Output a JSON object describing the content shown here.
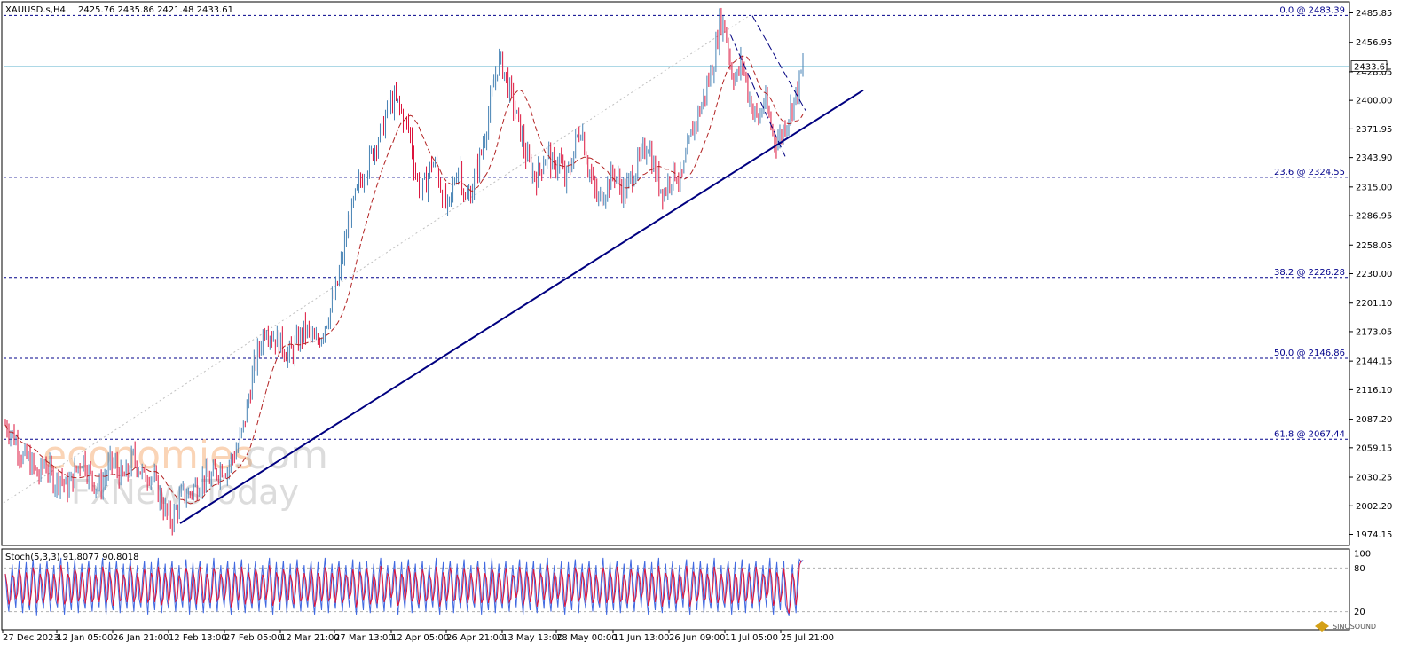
{
  "header": {
    "symbol": "XAUUSD.s,H4",
    "ohlc": "2425.76 2435.86 2421.48 2433.61"
  },
  "stoch": {
    "label": "Stoch(5,3,3) 91.8077 90.8018",
    "levels": [
      20,
      80,
      100
    ],
    "values": [
      72,
      40,
      20,
      55,
      85,
      50,
      25,
      65,
      90,
      45,
      18,
      60,
      88,
      35,
      22,
      70,
      92,
      48,
      15,
      58,
      86,
      40,
      24,
      68,
      90,
      52,
      20,
      60,
      84,
      36,
      26,
      74,
      94,
      44,
      16,
      56,
      88,
      42,
      22,
      66,
      92,
      50,
      18,
      62,
      86,
      38,
      24,
      72,
      90,
      46,
      20,
      58,
      84,
      40,
      26,
      70,
      94,
      48,
      16,
      60,
      88,
      34,
      22,
      68,
      90,
      52,
      18,
      56,
      86,
      42,
      24,
      74,
      92,
      46,
      20,
      62,
      84,
      38,
      26,
      66,
      90,
      50,
      16,
      58,
      88,
      44,
      22,
      70,
      94,
      40,
      18,
      60,
      86,
      36,
      24,
      72,
      90,
      48,
      20,
      56,
      84,
      42,
      26,
      68,
      92,
      52,
      16,
      62,
      88,
      38,
      22,
      74,
      90,
      46,
      18,
      58,
      86,
      40,
      24,
      66,
      94,
      50,
      20,
      60,
      84,
      44,
      26,
      70,
      90,
      36,
      16,
      56,
      88,
      48,
      22,
      72,
      92,
      42,
      18,
      62,
      86,
      38,
      24,
      68,
      90,
      52,
      20,
      58,
      84,
      46,
      26,
      74,
      94,
      40,
      16,
      60,
      88,
      44,
      22,
      66,
      90,
      50,
      18,
      56,
      86,
      36,
      24,
      70,
      92,
      48,
      20,
      62,
      84,
      42,
      26,
      72,
      90,
      38,
      16,
      58,
      88,
      46,
      22,
      68,
      94,
      52,
      18,
      60,
      86,
      40,
      24,
      74,
      90,
      44,
      20,
      56,
      84,
      50,
      26,
      66,
      92,
      36,
      16,
      62,
      88,
      48,
      22,
      70,
      90,
      42,
      18,
      58,
      86,
      38,
      24,
      72,
      94,
      46,
      20,
      60,
      84,
      52,
      26,
      68,
      90,
      40,
      16,
      56,
      88,
      44,
      22,
      74,
      92,
      50,
      18,
      62,
      86,
      36,
      24,
      66,
      90,
      48,
      20,
      58,
      84,
      42,
      26,
      70,
      94,
      38,
      16,
      60,
      88,
      46,
      22,
      72,
      90,
      52,
      18,
      56,
      86,
      40,
      24,
      68,
      92,
      44,
      20,
      62,
      84,
      36,
      26,
      74,
      90,
      48,
      16,
      58,
      88,
      42,
      22,
      66,
      94,
      50,
      18,
      60,
      86,
      38,
      24,
      70,
      90,
      46,
      20,
      56,
      84,
      52,
      26,
      72,
      92,
      40,
      16,
      62,
      88,
      44,
      22,
      68,
      90,
      36,
      18,
      58,
      86,
      48,
      24,
      74,
      94,
      42,
      20,
      60,
      84,
      50,
      26,
      66,
      90,
      38,
      16,
      56,
      88,
      46,
      22,
      70,
      92,
      52,
      18,
      62,
      86,
      40,
      24,
      72,
      90,
      44,
      20,
      58,
      84,
      36,
      26,
      68,
      94,
      48,
      16,
      60,
      88,
      42,
      22,
      74,
      90,
      50,
      18,
      56,
      86,
      38,
      24,
      66,
      92,
      46,
      20,
      62,
      84,
      52,
      26,
      70,
      90,
      40,
      16,
      58,
      88,
      44,
      22,
      72,
      94,
      36,
      18,
      60,
      86,
      48,
      24,
      68,
      90,
      42,
      20,
      56,
      84,
      50,
      26,
      74,
      92,
      38,
      16,
      62,
      88,
      46,
      22,
      66,
      90,
      52,
      18,
      58,
      86,
      40,
      24,
      70,
      94,
      44,
      20,
      60,
      84,
      36,
      26,
      72,
      90,
      48,
      16,
      56,
      88,
      42,
      22,
      68,
      92,
      50,
      18,
      62,
      86,
      38,
      24,
      74,
      90,
      46,
      20,
      58,
      84,
      52,
      26,
      66,
      94,
      40,
      16,
      60,
      88,
      44,
      22,
      70,
      90,
      30,
      20,
      15,
      60,
      85,
      40,
      18,
      75,
      92,
      88,
      91
    ]
  },
  "chart_data": {
    "type": "candlestick",
    "symbol": "XAUUSD.s",
    "timeframe": "H4",
    "last_price": 2433.61,
    "ylim": [
      1965,
      2495
    ],
    "y_ticks": [
      2485.85,
      2456.95,
      2428.05,
      2400.0,
      2371.95,
      2343.9,
      2315.0,
      2286.95,
      2258.05,
      2230.0,
      2201.1,
      2173.05,
      2144.15,
      2116.1,
      2087.2,
      2059.15,
      2030.25,
      2002.2,
      1974.15
    ],
    "y_tick_labels": [
      "2485.85",
      "2456.95",
      "2428.05",
      "2400.00",
      "2371.95",
      "2343.90",
      "2315.00",
      "2286.95",
      "2258.05",
      "2230.00",
      "2201.10",
      "2173.05",
      "2144.15",
      "2116.10",
      "2087.20",
      "2059.15",
      "2030.25",
      "2002.20",
      "1974.15"
    ],
    "x_labels": [
      "27 Dec 2023",
      "12 Jan 05:00",
      "26 Jan 21:00",
      "12 Feb 13:00",
      "27 Feb 05:00",
      "12 Mar 21:00",
      "27 Mar 13:00",
      "12 Apr 05:00",
      "26 Apr 21:00",
      "13 May 13:00",
      "28 May 00:00",
      "11 Jun 13:00",
      "26 Jun 09:00",
      "11 Jul 05:00",
      "25 Jul 21:00"
    ],
    "fibonacci": [
      {
        "label": "0.0 @ 2483.39",
        "value": 2483.39
      },
      {
        "label": "23.6 @ 2324.55",
        "value": 2324.55
      },
      {
        "label": "38.2 @ 2226.28",
        "value": 2226.28
      },
      {
        "label": "50.0 @ 2146.86",
        "value": 2146.86
      },
      {
        "label": "61.8 @ 2067.44",
        "value": 2067.44
      }
    ],
    "price_path": [
      2082,
      2075,
      2065,
      2050,
      2048,
      2040,
      2030,
      2045,
      2035,
      2025,
      2032,
      2018,
      2028,
      2040,
      2050,
      2035,
      2025,
      2020,
      2030,
      2045,
      2040,
      2028,
      2033,
      2050,
      2042,
      2030,
      2035,
      2025,
      2010,
      1995,
      1988,
      2000,
      2015,
      2012,
      2020,
      2025,
      2030,
      2028,
      2035,
      2040,
      2038,
      2050,
      2060,
      2080,
      2110,
      2140,
      2160,
      2180,
      2170,
      2165,
      2160,
      2150,
      2155,
      2165,
      2175,
      2170,
      2160,
      2170,
      2185,
      2200,
      2220,
      2250,
      2280,
      2300,
      2320,
      2330,
      2345,
      2360,
      2370,
      2390,
      2400,
      2395,
      2380,
      2370,
      2330,
      2310,
      2320,
      2340,
      2330,
      2305,
      2290,
      2320,
      2340,
      2300,
      2310,
      2330,
      2350,
      2380,
      2410,
      2440,
      2430,
      2410,
      2390,
      2370,
      2345,
      2330,
      2325,
      2340,
      2350,
      2330,
      2345,
      2320,
      2335,
      2360,
      2375,
      2340,
      2320,
      2300,
      2310,
      2320,
      2330,
      2315,
      2310,
      2325,
      2335,
      2345,
      2360,
      2335,
      2318,
      2310,
      2325,
      2330,
      2320,
      2345,
      2370,
      2385,
      2400,
      2420,
      2440,
      2480,
      2470,
      2430,
      2420,
      2440,
      2410,
      2390,
      2380,
      2400,
      2380,
      2360,
      2365,
      2380,
      2395,
      2410,
      2433.61
    ],
    "trendline": {
      "from": [
        0.03,
        1985
      ],
      "to": [
        0.97,
        2410
      ]
    }
  },
  "watermark": {
    "line1a": "economies",
    "line1b": ".com",
    "line2": "FxNewsToday"
  },
  "branding": {
    "name": "SINOSOUND"
  }
}
